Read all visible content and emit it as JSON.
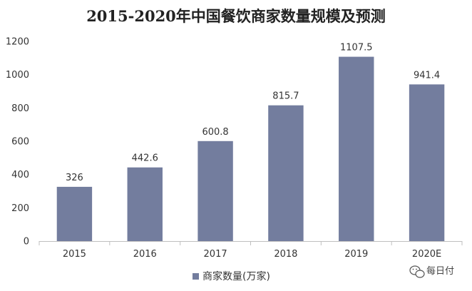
{
  "chart_data": {
    "type": "bar",
    "title": "2015-2020年中国餐饮商家数量规模及预测",
    "categories": [
      "2015",
      "2016",
      "2017",
      "2018",
      "2019",
      "2020E"
    ],
    "series": [
      {
        "name": "商家数量(万家)",
        "values": [
          326,
          442.6,
          600.8,
          815.7,
          1107.5,
          941.4
        ],
        "color": "#737d9e"
      }
    ],
    "data_labels": [
      "326",
      "442.6",
      "600.8",
      "815.7",
      "1107.5",
      "941.4"
    ],
    "ylim": [
      0,
      1200
    ],
    "yticks": [
      0,
      200,
      400,
      600,
      800,
      1000,
      1200
    ],
    "ytick_labels": [
      "0",
      "200",
      "400",
      "600",
      "800",
      "1000",
      "1200"
    ],
    "xlabel": "",
    "ylabel": "",
    "grid": false,
    "legend_position": "bottom"
  },
  "watermark": {
    "text": "每日付",
    "icon": "wechat-icon"
  }
}
